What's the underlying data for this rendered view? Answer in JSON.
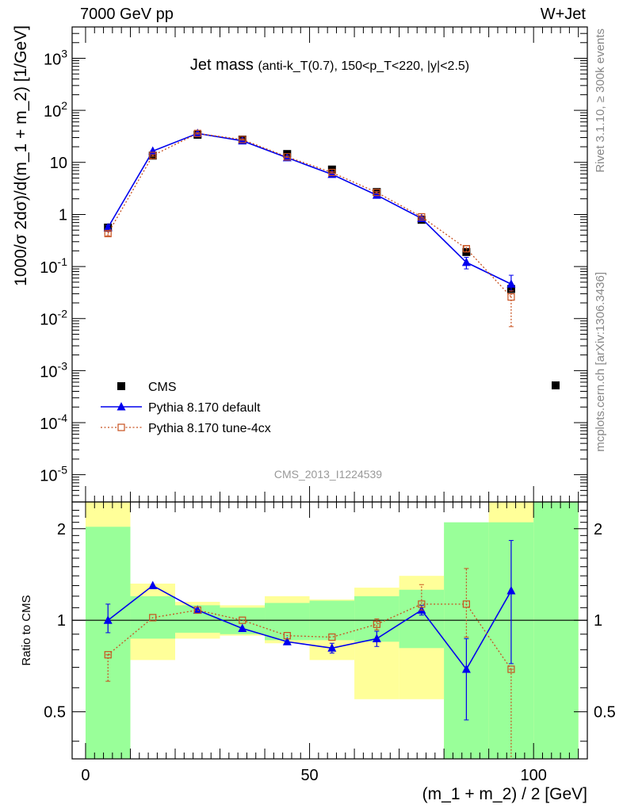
{
  "header": {
    "left": "7000 GeV pp",
    "right": "W+Jet"
  },
  "side": {
    "rivet": "Rivet 3.1.10, ≥ 300k events",
    "mcplots": "mcplots.cern.ch [arXiv:1306.3436]"
  },
  "chart_data": [
    {
      "type": "scatter",
      "title": "Jet mass",
      "title_detail": "(anti-k_T(0.7), 150<p_T<220, |y|<2.5)",
      "ylabel": "1000/σ 2dσ)/d(m_1 + m_2) [1/GeV]",
      "xlabel": "(m_1 + m_2) / 2 [GeV]",
      "yscale": "log",
      "ylim": [
        3e-06,
        4000
      ],
      "xlim": [
        -3,
        112
      ],
      "analysis_id": "CMS_2013_I1224539",
      "x": [
        5,
        15,
        25,
        35,
        45,
        55,
        65,
        75,
        85,
        95
      ],
      "series": [
        {
          "name": "CMS",
          "marker": "square-filled",
          "color": "#000000",
          "values": [
            0.56,
            13.5,
            34,
            27.5,
            14.5,
            7.3,
            2.7,
            0.79,
            0.19,
            0.037
          ]
        },
        {
          "name": "Pythia 8.170 default",
          "marker": "triangle-filled",
          "line": "solid",
          "color": "#0000ee",
          "values": [
            0.56,
            16.5,
            36,
            26,
            12.3,
            5.9,
            2.35,
            0.84,
            0.12,
            0.046
          ],
          "err_low": [
            0.05,
            0.5,
            1,
            0.8,
            0.4,
            0.2,
            0.1,
            0.05,
            0.03,
            0.012
          ],
          "err_high": [
            0.05,
            0.5,
            1,
            0.8,
            0.4,
            0.2,
            0.1,
            0.05,
            0.03,
            0.022
          ]
        },
        {
          "name": "Pythia 8.170 tune-4cx",
          "marker": "square-open",
          "line": "dotted",
          "color": "#c8501e",
          "values": [
            0.43,
            13.6,
            36,
            27.5,
            12.8,
            6.4,
            2.65,
            0.9,
            0.22,
            0.026
          ],
          "err_low": [
            0.04,
            0.5,
            1,
            0.8,
            0.4,
            0.2,
            0.1,
            0.05,
            0.03,
            0.019
          ],
          "err_high": [
            0.04,
            0.5,
            1,
            0.8,
            0.4,
            0.2,
            0.1,
            0.05,
            0.03,
            0.008
          ]
        }
      ],
      "legend_position": "lower-left",
      "yticks": [
        "10^-5",
        "10^-4",
        "10^-3",
        "10^-2",
        "10^-1",
        "1",
        "10",
        "10^2",
        "10^3"
      ]
    },
    {
      "type": "scatter",
      "ylabel": "Ratio to CMS",
      "xlabel": "(m_1 + m_2) / 2 [GeV]",
      "yscale": "log",
      "ylim": [
        0.35,
        2.45
      ],
      "xlim": [
        -3,
        112
      ],
      "yticks": [
        0.5,
        1,
        2
      ],
      "xticks": [
        0,
        50,
        100
      ],
      "bands": {
        "x_edges": [
          0,
          10,
          20,
          30,
          40,
          50,
          60,
          70,
          80,
          90,
          100,
          110
        ],
        "inner_color": "#99ff99",
        "outer_color": "#ffff99",
        "inner_low": [
          0.3,
          0.87,
          0.91,
          0.9,
          0.86,
          0.86,
          0.85,
          0.81,
          0.3,
          0.3,
          0.3
        ],
        "inner_high": [
          2.03,
          1.2,
          1.12,
          1.1,
          1.14,
          1.16,
          1.2,
          1.26,
          2.1,
          2.1,
          3.0
        ],
        "outer_low": [
          0.3,
          0.74,
          0.87,
          0.89,
          0.84,
          0.74,
          0.55,
          0.55,
          0.3,
          0.3,
          0.3
        ],
        "outer_high": [
          3.0,
          1.32,
          1.15,
          1.12,
          1.2,
          1.17,
          1.28,
          1.4,
          1.93,
          3.0,
          3.0
        ]
      },
      "series": [
        {
          "name": "Pythia 8.170 default",
          "color": "#0000ee",
          "values": [
            1.0,
            1.3,
            1.08,
            0.94,
            0.85,
            0.81,
            0.87,
            1.08,
            0.69,
            1.25
          ],
          "err_low": [
            0.09,
            0.0,
            0.0,
            0.0,
            0.0,
            0.03,
            0.05,
            0.04,
            0.22,
            0.53
          ],
          "err_high": [
            0.13,
            0.0,
            0.0,
            0.0,
            0.0,
            0.03,
            0.05,
            0.04,
            0.18,
            0.58
          ]
        },
        {
          "name": "Pythia 8.170 tune-4cx",
          "color": "#c8501e",
          "values": [
            0.77,
            1.02,
            1.08,
            1.0,
            0.89,
            0.88,
            0.97,
            1.13,
            1.13,
            0.69
          ],
          "err_low": [
            0.14,
            0.0,
            0.0,
            0.0,
            0.0,
            0.0,
            0.04,
            0.05,
            0.25,
            0.36
          ],
          "err_high": [
            0.0,
            0.0,
            0.0,
            0.0,
            0.0,
            0.0,
            0.04,
            0.18,
            0.35,
            0.0
          ]
        }
      ]
    }
  ]
}
